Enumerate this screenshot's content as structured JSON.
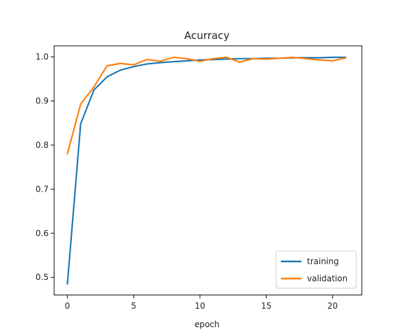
{
  "chart_data": {
    "type": "line",
    "title": "Acurracy",
    "xlabel": "epoch",
    "ylabel": "",
    "xlim": [
      -1,
      22.2
    ],
    "ylim": [
      0.46,
      1.025
    ],
    "xticks": [
      0,
      5,
      10,
      15,
      20
    ],
    "xtick_labels": [
      "0",
      "5",
      "10",
      "15",
      "20"
    ],
    "yticks": [
      0.5,
      0.6,
      0.7,
      0.8,
      0.9,
      1.0
    ],
    "ytick_labels": [
      "0.5",
      "0.6",
      "0.7",
      "0.8",
      "0.9",
      "1.0"
    ],
    "grid": false,
    "legend_position": "lower-right",
    "x": [
      0,
      1,
      2,
      3,
      4,
      5,
      6,
      7,
      8,
      9,
      10,
      11,
      12,
      13,
      14,
      15,
      16,
      17,
      18,
      19,
      20,
      21
    ],
    "series": [
      {
        "name": "training",
        "color": "#1f77b4",
        "values": [
          0.485,
          0.848,
          0.925,
          0.955,
          0.97,
          0.978,
          0.984,
          0.987,
          0.989,
          0.991,
          0.993,
          0.994,
          0.995,
          0.996,
          0.996,
          0.997,
          0.997,
          0.998,
          0.998,
          0.998,
          0.999,
          0.999
        ]
      },
      {
        "name": "validation",
        "color": "#ff7f0e",
        "values": [
          0.78,
          0.893,
          0.932,
          0.98,
          0.985,
          0.982,
          0.994,
          0.99,
          0.999,
          0.996,
          0.99,
          0.996,
          0.999,
          0.988,
          0.996,
          0.995,
          0.997,
          0.999,
          0.996,
          0.993,
          0.991,
          0.998
        ]
      }
    ]
  }
}
